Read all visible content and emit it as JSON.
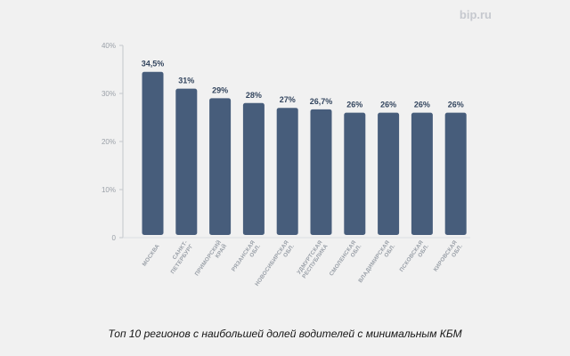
{
  "brand": "bip.ru",
  "caption": "Топ 10 регионов с наибольшей долей водителей с минимальным КБМ",
  "chart_data": {
    "type": "bar",
    "title": "Топ 10 регионов с наибольшей долей водителей с минимальным КБМ",
    "categories": [
      [
        "МОСКВА"
      ],
      [
        "САНКТ-",
        "ПЕТЕРБУРГ"
      ],
      [
        "ПРИМОРСКИЙ",
        "КРАЙ"
      ],
      [
        "РЯЗАНСКАЯ",
        "ОБЛ."
      ],
      [
        "НОВОСИБИРСКАЯ",
        "ОБЛ."
      ],
      [
        "УДМУРТСКАЯ",
        "РЕСПУБЛИКА"
      ],
      [
        "СМОЛЕНСКАЯ",
        "ОБЛ."
      ],
      [
        "ВЛАДИМИРСКАЯ",
        "ОБЛ."
      ],
      [
        "ПСКОВСКАЯ",
        "ОБЛ."
      ],
      [
        "КИРОВСКАЯ",
        "ОБЛ."
      ]
    ],
    "values": [
      34.5,
      31,
      29,
      28,
      27,
      26.7,
      26,
      26,
      26,
      26
    ],
    "value_labels": [
      "34,5%",
      "31%",
      "29%",
      "28%",
      "27%",
      "26,7%",
      "26%",
      "26%",
      "26%",
      "26%"
    ],
    "y_ticks": [
      0,
      10,
      20,
      30,
      40
    ],
    "y_tick_labels": [
      "0",
      "10%",
      "20%",
      "30%",
      "40%"
    ],
    "ylim": [
      0,
      40
    ],
    "grid": false,
    "bar_color": "#475d7b",
    "xlabel": "",
    "ylabel": ""
  }
}
